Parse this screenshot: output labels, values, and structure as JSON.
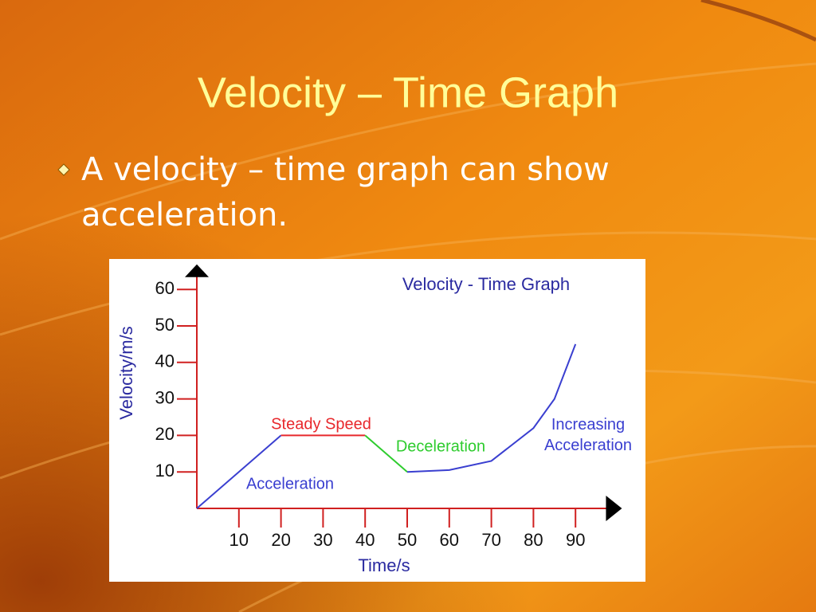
{
  "slide": {
    "title": "Velocity – Time Graph",
    "bullet": "A velocity – time graph can show acceleration."
  },
  "chart_data": {
    "type": "line",
    "title": "Velocity - Time Graph",
    "x_label": "Time/s",
    "y_label": "Velocity/m/s",
    "xlim": [
      0,
      98
    ],
    "ylim": [
      0,
      66
    ],
    "xticks": [
      10,
      20,
      30,
      40,
      50,
      60,
      70,
      80,
      90
    ],
    "yticks": [
      10,
      20,
      30,
      40,
      50,
      60
    ],
    "series": [
      {
        "name": "Acceleration",
        "color": "#3a3fd0",
        "x": [
          0,
          20
        ],
        "values": [
          0,
          20
        ]
      },
      {
        "name": "Steady Speed",
        "color": "#e8282c",
        "x": [
          20,
          40
        ],
        "values": [
          20,
          20
        ]
      },
      {
        "name": "Deceleration",
        "color": "#2ecc2e",
        "x": [
          40,
          50
        ],
        "values": [
          20,
          10
        ]
      },
      {
        "name": "Increasing Acceleration",
        "color": "#3a3fd0",
        "x": [
          50,
          60,
          70,
          80,
          85,
          90
        ],
        "values": [
          10,
          10.5,
          13,
          22,
          30,
          45
        ]
      }
    ]
  }
}
